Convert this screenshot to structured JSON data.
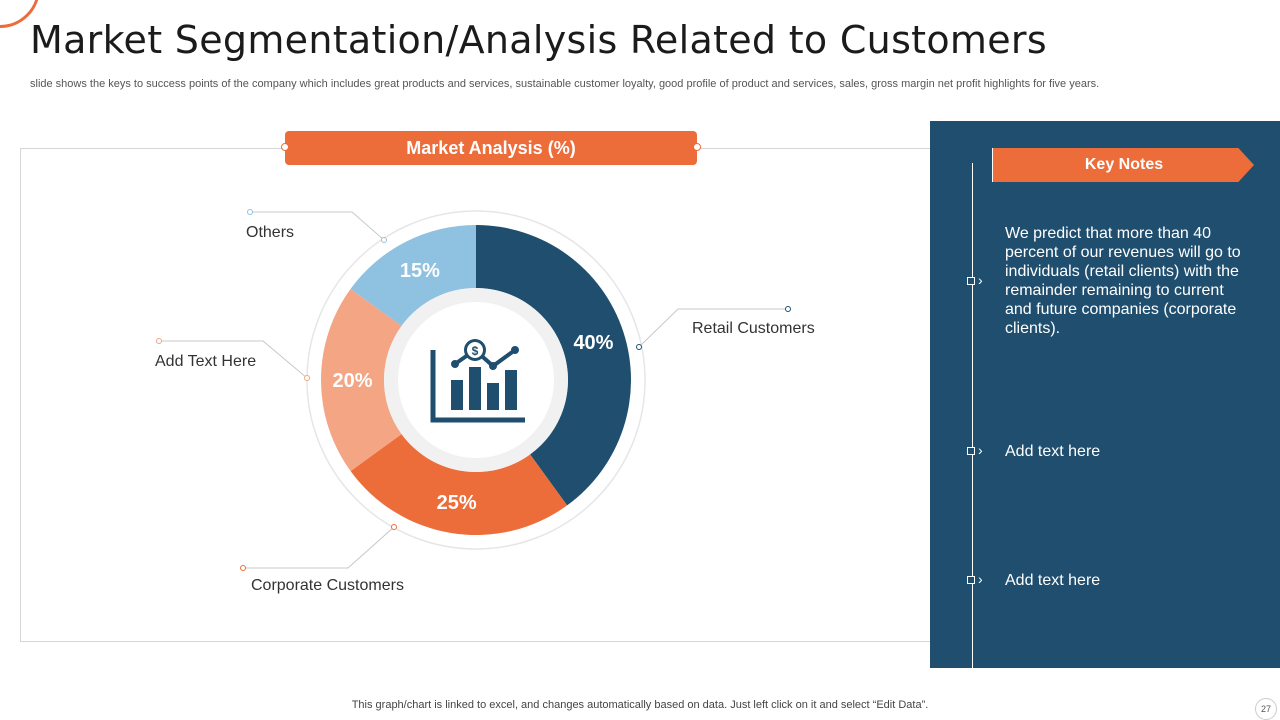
{
  "slide": {
    "title": "Market Segmentation/Analysis Related to Customers",
    "subtitle": "slide shows the keys to  success points of the company which includes great products and services, sustainable customer loyalty, good profile of product and services, sales, gross margin net profit highlights for five years.",
    "footer": "This graph/chart is linked to excel,  and changes automatically based on data. Just left click on it and select “Edit Data”.",
    "page_number": "27"
  },
  "chart_data": {
    "type": "pie",
    "title": "Market Analysis (%)",
    "center_icon": "dollar-bar-chart-icon",
    "slices": [
      {
        "label": "Retail Customers",
        "value": 40,
        "display": "40%",
        "color": "#1f4e6e"
      },
      {
        "label": "Corporate Customers",
        "value": 25,
        "display": "25%",
        "color": "#ec6c3a"
      },
      {
        "label": "Add Text Here",
        "value": 20,
        "display": "20%",
        "color": "#f3a584"
      },
      {
        "label": "Others",
        "value": 15,
        "display": "15%",
        "color": "#8fc1e0"
      }
    ]
  },
  "notes": {
    "header": "Key Notes",
    "items": [
      {
        "text": "We predict that more than 40 percent of our revenues will go to individuals (retail clients) with the remainder remaining to current and future companies (corporate clients)."
      },
      {
        "text": "Add text here"
      },
      {
        "text": "Add text here"
      }
    ]
  },
  "colors": {
    "accent": "#ec6c3a",
    "navy": "#1f4e6e"
  }
}
